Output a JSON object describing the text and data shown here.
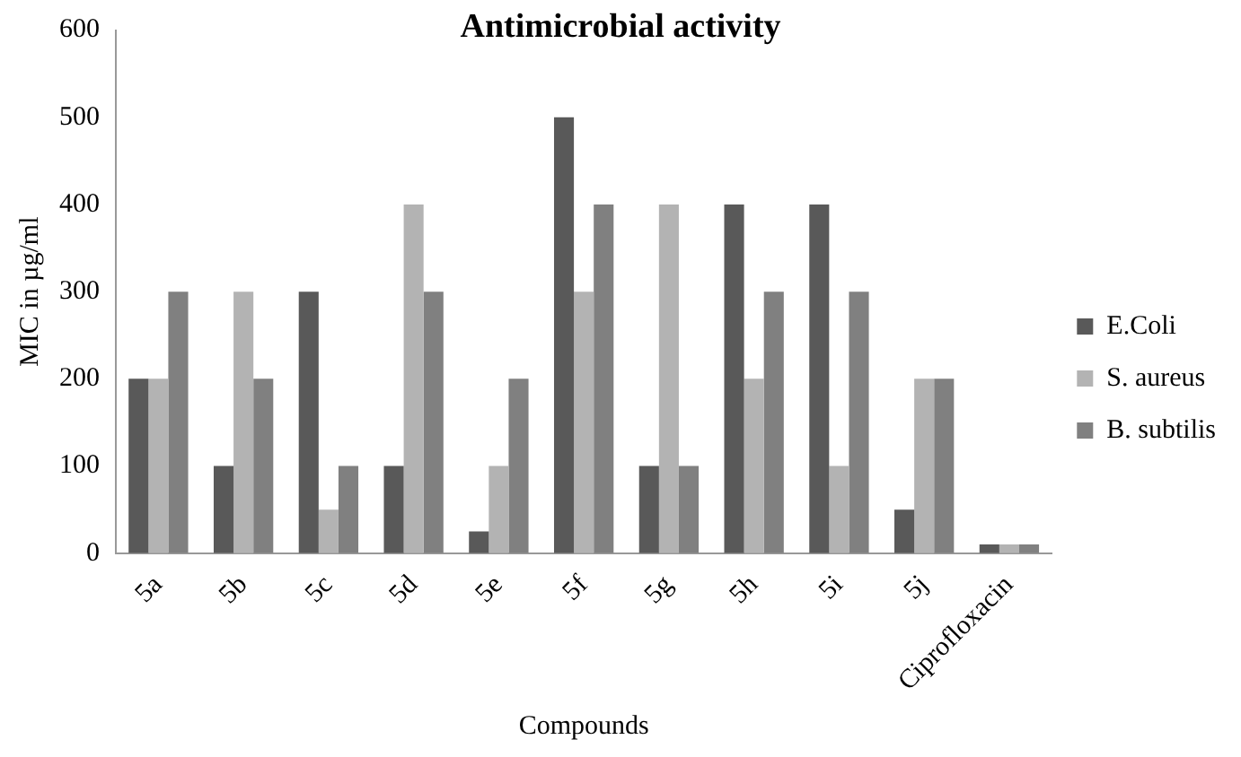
{
  "chart_data": {
    "type": "bar",
    "title": "Antimicrobial activity",
    "xlabel": "Compounds",
    "ylabel": "MIC in µg/ml",
    "categories": [
      "5a",
      "5b",
      "5c",
      "5d",
      "5e",
      "5f",
      "5g",
      "5h",
      "5i",
      "5j",
      "Ciprofloxacin"
    ],
    "series": [
      {
        "name": "E.Coli",
        "color": "#595959",
        "values": [
          200,
          100,
          300,
          100,
          25,
          500,
          100,
          400,
          400,
          50,
          10
        ]
      },
      {
        "name": "S. aureus",
        "color": "#b3b3b3",
        "values": [
          200,
          300,
          50,
          400,
          100,
          300,
          400,
          200,
          100,
          200,
          10
        ]
      },
      {
        "name": "B. subtilis",
        "color": "#808080",
        "values": [
          300,
          200,
          100,
          300,
          200,
          400,
          100,
          300,
          300,
          200,
          10
        ]
      }
    ],
    "ylim": [
      0,
      600
    ],
    "yticks": [
      0,
      100,
      200,
      300,
      400,
      500,
      600
    ],
    "grid": false,
    "legend": "right"
  }
}
